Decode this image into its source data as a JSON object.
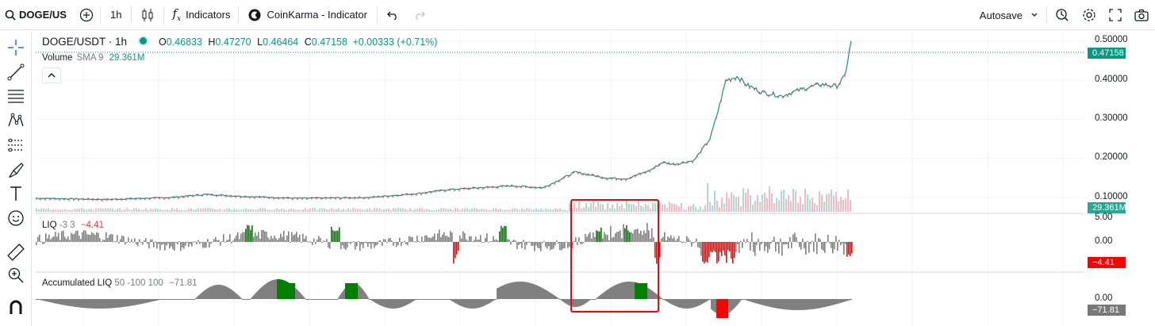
{
  "toolbar": {
    "symbol": "DOGE/US",
    "interval": "1h",
    "indicators_label": "Indicators",
    "script_label": "CoinKarma - Indicator",
    "autosave_label": "Autosave"
  },
  "legend": {
    "title": "DOGE/USDT · 1h",
    "o_label": "O",
    "o_value": "0.46833",
    "h_label": "H",
    "h_value": "0.47270",
    "l_label": "L",
    "l_value": "0.46464",
    "c_label": "C",
    "c_value": "0.47158",
    "change": "+0.00333 (+0.71%)",
    "volume_label": "Volume",
    "volume_params": "SMA 9",
    "volume_value": "29.361M",
    "liq_label": "LIQ",
    "liq_params": "-3 3",
    "liq_value": "−4.41",
    "acc_label": "Accumulated LIQ",
    "acc_params": "50 -100 100",
    "acc_value": "−71.81"
  },
  "price_axis": {
    "ticks": [
      "0.50000",
      "0.40000",
      "0.30000",
      "0.20000",
      "0.10000"
    ],
    "last_price_tag": "0.47158",
    "volume_tag": "29.361M"
  },
  "liq_axis": {
    "ticks": [
      "5.00",
      "0.00"
    ],
    "value_tag": "−4.41"
  },
  "acc_axis": {
    "ticks": [
      "0.00"
    ],
    "value_tag": "−71.81"
  },
  "colors": {
    "up": "#089981",
    "down": "#f23645",
    "liq_gray": "#808080",
    "liq_green": "#008000",
    "liq_red": "#ff0000",
    "highlight_box": "#ff0000"
  },
  "icons": [
    "search-icon",
    "add-symbol-icon",
    "candles-icon",
    "indicators-fx-icon",
    "coinkarma-logo-icon",
    "undo-icon",
    "redo-icon",
    "chevron-down-icon",
    "replay-icon",
    "settings-icon",
    "fullscreen-icon",
    "camera-icon",
    "crosshair-icon",
    "trend-line-icon",
    "fib-icon",
    "pattern-icon",
    "forecast-icon",
    "brush-icon",
    "text-icon",
    "emoji-icon",
    "ruler-icon",
    "zoom-icon",
    "magnet-icon",
    "collapse-icon"
  ]
}
